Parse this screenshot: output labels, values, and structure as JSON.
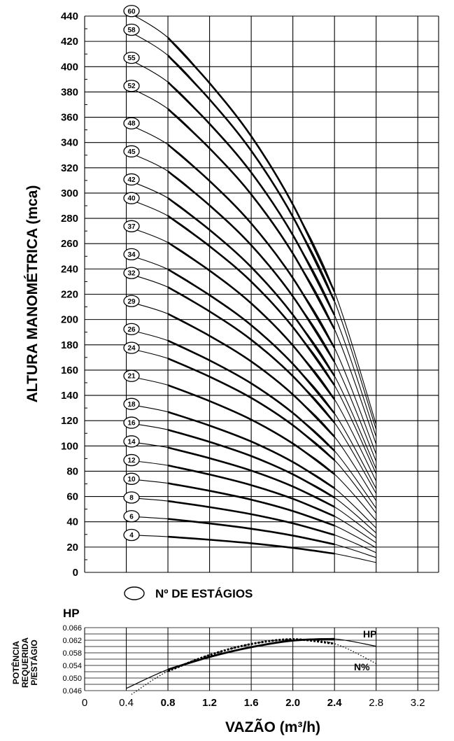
{
  "chart_data": [
    {
      "type": "line",
      "ylabel": "ALTURA MANOMÉTRICA (mca)",
      "xlim": [
        0,
        3.4
      ],
      "ylim": [
        0,
        440
      ],
      "yticks": [
        0,
        20,
        40,
        60,
        80,
        100,
        120,
        140,
        160,
        180,
        200,
        220,
        240,
        260,
        280,
        300,
        320,
        340,
        360,
        380,
        400,
        420,
        440
      ],
      "grid": true,
      "legend_marker_label": "Nº DE ESTÁGIOS",
      "x": [
        0.4,
        0.8,
        1.2,
        1.6,
        2.0,
        2.4,
        2.8
      ],
      "stage_head_per_stage": [
        7.4,
        7.05,
        6.45,
        5.75,
        4.85,
        3.7,
        1.95
      ],
      "stages": [
        4,
        6,
        8,
        10,
        12,
        14,
        16,
        18,
        21,
        24,
        26,
        29,
        32,
        34,
        37,
        40,
        42,
        45,
        48,
        52,
        55,
        58,
        60
      ],
      "series": [
        {
          "name": "4",
          "values": [
            29.6,
            28.2,
            25.8,
            23.0,
            19.4,
            14.8,
            7.8
          ]
        },
        {
          "name": "6",
          "values": [
            44.4,
            42.3,
            38.7,
            34.5,
            29.1,
            22.2,
            11.7
          ]
        },
        {
          "name": "8",
          "values": [
            59.2,
            56.4,
            51.6,
            46.0,
            38.8,
            29.6,
            15.6
          ]
        },
        {
          "name": "10",
          "values": [
            74.0,
            70.5,
            64.5,
            57.5,
            48.5,
            37.0,
            19.5
          ]
        },
        {
          "name": "12",
          "values": [
            88.8,
            84.6,
            77.4,
            69.0,
            58.2,
            44.4,
            23.4
          ]
        },
        {
          "name": "14",
          "values": [
            103.6,
            98.7,
            90.3,
            80.5,
            67.9,
            51.8,
            27.3
          ]
        },
        {
          "name": "16",
          "values": [
            118.4,
            112.8,
            103.2,
            92.0,
            77.6,
            59.2,
            31.2
          ]
        },
        {
          "name": "18",
          "values": [
            133.2,
            126.9,
            116.1,
            103.5,
            87.3,
            66.6,
            35.1
          ]
        },
        {
          "name": "21",
          "values": [
            155.4,
            148.1,
            135.5,
            120.8,
            101.9,
            77.7,
            41.0
          ]
        },
        {
          "name": "24",
          "values": [
            177.6,
            169.2,
            154.8,
            138.0,
            116.4,
            88.8,
            46.8
          ]
        },
        {
          "name": "26",
          "values": [
            192.4,
            183.3,
            167.7,
            149.5,
            126.1,
            96.2,
            50.7
          ]
        },
        {
          "name": "29",
          "values": [
            214.6,
            204.5,
            187.1,
            166.8,
            140.7,
            107.3,
            56.6
          ]
        },
        {
          "name": "32",
          "values": [
            236.8,
            225.6,
            206.4,
            184.0,
            155.2,
            118.4,
            62.4
          ]
        },
        {
          "name": "34",
          "values": [
            251.6,
            239.7,
            219.3,
            195.5,
            164.9,
            125.8,
            66.3
          ]
        },
        {
          "name": "37",
          "values": [
            273.8,
            260.9,
            238.7,
            212.8,
            179.5,
            136.9,
            72.2
          ]
        },
        {
          "name": "40",
          "values": [
            296.0,
            282.0,
            258.0,
            230.0,
            194.0,
            148.0,
            78.0
          ]
        },
        {
          "name": "42",
          "values": [
            310.8,
            296.1,
            270.9,
            241.5,
            203.7,
            155.4,
            81.9
          ]
        },
        {
          "name": "45",
          "values": [
            333.0,
            317.3,
            290.3,
            258.8,
            218.3,
            166.5,
            87.8
          ]
        },
        {
          "name": "48",
          "values": [
            355.2,
            338.4,
            309.6,
            276.0,
            232.8,
            177.6,
            93.6
          ]
        },
        {
          "name": "52",
          "values": [
            384.8,
            366.6,
            335.4,
            299.0,
            252.2,
            192.4,
            101.4
          ]
        },
        {
          "name": "55",
          "values": [
            407.0,
            387.8,
            354.8,
            316.3,
            266.8,
            203.5,
            107.3
          ]
        },
        {
          "name": "58",
          "values": [
            429.2,
            408.9,
            374.1,
            333.5,
            281.3,
            214.6,
            113.1
          ]
        },
        {
          "name": "60",
          "values": [
            444.0,
            423.0,
            387.0,
            345.0,
            291.0,
            222.0,
            117.0
          ]
        }
      ]
    },
    {
      "type": "line",
      "xlabel": "VAZÃO (m³/h)",
      "unit_label": "HP",
      "ylabel_lines": [
        "POTÊNCIA",
        "REQUERIDA",
        "P/ESTÁGIO"
      ],
      "xticks": [
        "0",
        "0.4",
        "0.8",
        "1.2",
        "1.6",
        "2.0",
        "2.4",
        "2.8",
        "3.2"
      ],
      "yticks": [
        "0.046",
        "0.050",
        "0.054",
        "0.058",
        "0.062",
        "0.066"
      ],
      "xlim": [
        0,
        3.4
      ],
      "ylim": [
        0.046,
        0.066
      ],
      "series": [
        {
          "name": "HP",
          "x": [
            0.4,
            0.8,
            1.2,
            1.6,
            2.0,
            2.4,
            2.8
          ],
          "values": [
            0.0467,
            0.0527,
            0.0567,
            0.0598,
            0.0619,
            0.0624,
            0.0601
          ]
        },
        {
          "name": "N%",
          "x": [
            0.45,
            0.8,
            1.2,
            1.6,
            2.0,
            2.4,
            2.8
          ],
          "values": [
            0.0448,
            0.0522,
            0.0573,
            0.0608,
            0.0623,
            0.0609,
            0.0546
          ]
        }
      ]
    }
  ]
}
